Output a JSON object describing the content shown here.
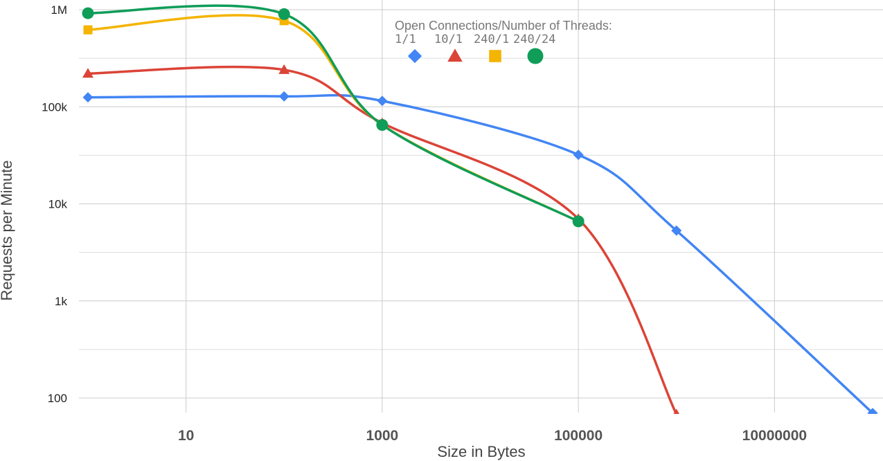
{
  "chart_data": {
    "type": "line",
    "title": "",
    "xlabel": "Size in Bytes",
    "ylabel": "Requests per Minute",
    "x_scale": "log",
    "y_scale": "log",
    "xlim": [
      1,
      10000000
    ],
    "ylim": [
      60,
      1000000
    ],
    "x_ticks": [
      {
        "value": 10,
        "label": "10"
      },
      {
        "value": 1000,
        "label": "1000"
      },
      {
        "value": 100000,
        "label": "100000"
      },
      {
        "value": 10000000,
        "label": "10000000"
      }
    ],
    "y_ticks": [
      {
        "value": 100,
        "label": "100"
      },
      {
        "value": 1000,
        "label": "1k"
      },
      {
        "value": 10000,
        "label": "10k"
      },
      {
        "value": 100000,
        "label": "100k"
      },
      {
        "value": 1000000,
        "label": "1M"
      }
    ],
    "grid": true,
    "legend": {
      "title": "Open Connections/Number of Threads:",
      "placement": "top-center"
    },
    "series": [
      {
        "name": "1/1",
        "color": "#4285f4",
        "marker": "diamond",
        "x": [
          1,
          100,
          1000,
          100000,
          1000000,
          100000000
        ],
        "y": [
          125000,
          128000,
          115000,
          32000,
          5300,
          70
        ]
      },
      {
        "name": "10/1",
        "color": "#db4437",
        "marker": "triangle",
        "x": [
          1,
          100,
          1000,
          100000,
          1000000
        ],
        "y": [
          220000,
          240000,
          68000,
          7000,
          68
        ]
      },
      {
        "name": "240/1",
        "color": "#f4b400",
        "marker": "square",
        "x": [
          1,
          100,
          1000,
          100000
        ],
        "y": [
          620000,
          770000,
          65000,
          6600
        ]
      },
      {
        "name": "240/24",
        "color": "#0f9d58",
        "marker": "circle",
        "x": [
          1,
          100,
          1000,
          100000
        ],
        "y": [
          920000,
          900000,
          65000,
          6600
        ]
      }
    ]
  }
}
